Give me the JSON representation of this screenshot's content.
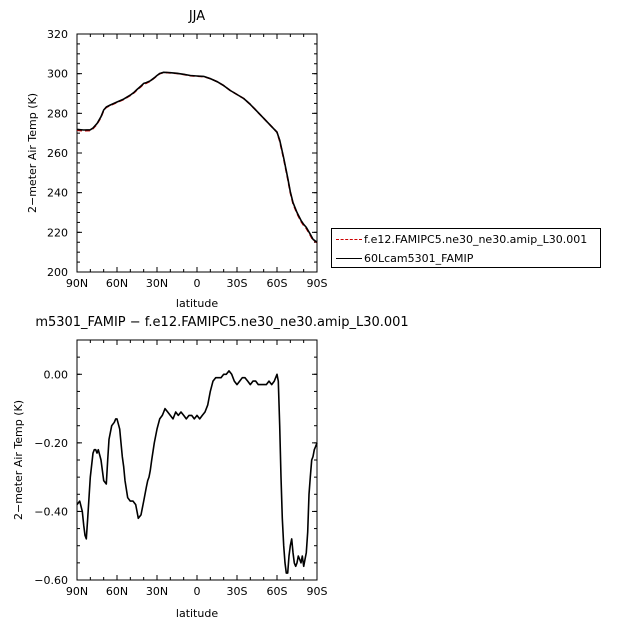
{
  "chart_data": [
    {
      "type": "line",
      "title": "JJA",
      "xlabel": "latitude",
      "ylabel": "2−meter Air Temp (K)",
      "xlim": [
        90,
        -90
      ],
      "ylim": [
        200,
        320
      ],
      "xticks": [
        90,
        60,
        30,
        0,
        -30,
        -60,
        -90
      ],
      "xtick_labels": [
        "90N",
        "60N",
        "30N",
        "0",
        "30S",
        "60S",
        "90S"
      ],
      "yticks": [
        200,
        220,
        240,
        260,
        280,
        300,
        320
      ],
      "ytick_labels": [
        "200",
        "220",
        "240",
        "260",
        "280",
        "300",
        "320"
      ],
      "grid": false,
      "legend_placement": "right-outside",
      "series": [
        {
          "name": "f.e12.FAMIPC5.ne30_ne30.amip_L30.001",
          "color": "#cc0000",
          "dash": "dashed",
          "x": [
            90,
            85,
            80,
            78,
            75,
            72,
            70,
            68,
            65,
            60,
            55,
            50,
            47,
            45,
            42,
            40,
            38,
            35,
            32,
            30,
            28,
            25,
            22,
            20,
            15,
            10,
            5,
            0,
            -5,
            -10,
            -15,
            -20,
            -25,
            -30,
            -35,
            -40,
            -45,
            -50,
            -55,
            -60,
            -62,
            -65,
            -68,
            -70,
            -72,
            -75,
            -78,
            -80,
            -82,
            -85,
            -87,
            -90
          ],
          "y": [
            271.5,
            271.2,
            271.3,
            272.3,
            274.5,
            278,
            281.5,
            283,
            284,
            285.5,
            287,
            289,
            290.5,
            291.8,
            293.5,
            294.8,
            295.2,
            296.2,
            297.8,
            299,
            300,
            300.6,
            300.5,
            300.4,
            300.1,
            299.6,
            299,
            298.7,
            298.5,
            297.5,
            296,
            294,
            291.5,
            289.5,
            287.5,
            284.5,
            281,
            277.5,
            274,
            270.5,
            266,
            257,
            247,
            240,
            234.5,
            229.5,
            225.5,
            223.5,
            222,
            218.5,
            216,
            214.8
          ]
        },
        {
          "name": "60Lcam5301_FAMIP",
          "color": "#000000",
          "dash": "solid",
          "x": [
            90,
            85,
            80,
            78,
            75,
            72,
            70,
            68,
            65,
            60,
            55,
            50,
            47,
            45,
            42,
            40,
            38,
            35,
            32,
            30,
            28,
            25,
            22,
            20,
            15,
            10,
            5,
            0,
            -5,
            -10,
            -15,
            -20,
            -25,
            -30,
            -35,
            -40,
            -45,
            -50,
            -55,
            -60,
            -62,
            -65,
            -68,
            -70,
            -72,
            -75,
            -78,
            -80,
            -82,
            -85,
            -87,
            -90
          ],
          "y": [
            271.9,
            271.6,
            271.7,
            272.6,
            274.8,
            278.3,
            281.7,
            283.2,
            284.2,
            285.7,
            287.2,
            289.2,
            290.7,
            292,
            293.8,
            295.1,
            295.5,
            296.4,
            297.9,
            299.1,
            300.1,
            300.7,
            300.6,
            300.5,
            300.2,
            299.7,
            299.1,
            298.8,
            298.6,
            297.5,
            296,
            294,
            291.5,
            289.5,
            287.5,
            284.5,
            281,
            277.5,
            274,
            270.5,
            266.5,
            257.5,
            247.5,
            240.5,
            235,
            230,
            226,
            224,
            222.5,
            219,
            216.5,
            215
          ]
        }
      ]
    },
    {
      "type": "line",
      "title": "m5301_FAMIP − f.e12.FAMIPC5.ne30_ne30.amip_L30.001",
      "xlabel": "latitude",
      "ylabel": "2−meter Air Temp (K)",
      "xlim": [
        90,
        -90
      ],
      "ylim": [
        -0.6,
        0.1
      ],
      "xticks": [
        90,
        60,
        30,
        0,
        -30,
        -60,
        -90
      ],
      "xtick_labels": [
        "90N",
        "60N",
        "30N",
        "0",
        "30S",
        "60S",
        "90S"
      ],
      "yticks": [
        0,
        -0.2,
        -0.4,
        -0.6
      ],
      "ytick_labels": [
        "0.00",
        "−0.20",
        "−0.40",
        "−0.60"
      ],
      "grid": false,
      "series": [
        {
          "color": "#000000",
          "dash": "solid",
          "x": [
            90,
            88,
            86,
            85,
            84,
            83,
            82,
            80,
            78,
            77,
            76,
            75,
            74,
            72,
            70,
            68,
            67,
            66,
            64,
            62,
            61,
            60,
            58,
            57,
            56,
            55,
            54,
            52,
            50,
            48,
            46,
            45,
            44,
            42,
            40,
            38,
            37,
            36,
            35,
            34,
            32,
            30,
            28,
            26,
            25,
            24,
            22,
            20,
            18,
            16,
            14,
            12,
            10,
            8,
            6,
            4,
            2,
            0,
            -2,
            -4,
            -6,
            -8,
            -10,
            -12,
            -14,
            -16,
            -18,
            -20,
            -22,
            -24,
            -26,
            -28,
            -30,
            -32,
            -34,
            -36,
            -38,
            -40,
            -42,
            -44,
            -46,
            -48,
            -50,
            -52,
            -54,
            -56,
            -58,
            -60,
            -61,
            -62,
            -63,
            -64,
            -65,
            -66,
            -67,
            -68,
            -69,
            -70,
            -71,
            -72,
            -73,
            -74,
            -75,
            -76,
            -77,
            -78,
            -79,
            -80,
            -81,
            -82,
            -83,
            -84,
            -85,
            -86,
            -87,
            -88,
            -89,
            -90
          ],
          "y": [
            -0.38,
            -0.37,
            -0.4,
            -0.44,
            -0.47,
            -0.48,
            -0.42,
            -0.3,
            -0.23,
            -0.22,
            -0.22,
            -0.23,
            -0.22,
            -0.25,
            -0.31,
            -0.32,
            -0.25,
            -0.19,
            -0.15,
            -0.14,
            -0.13,
            -0.13,
            -0.16,
            -0.2,
            -0.24,
            -0.27,
            -0.31,
            -0.36,
            -0.37,
            -0.37,
            -0.38,
            -0.4,
            -0.42,
            -0.41,
            -0.37,
            -0.33,
            -0.31,
            -0.3,
            -0.28,
            -0.25,
            -0.2,
            -0.16,
            -0.13,
            -0.12,
            -0.11,
            -0.1,
            -0.11,
            -0.12,
            -0.13,
            -0.11,
            -0.12,
            -0.11,
            -0.12,
            -0.13,
            -0.12,
            -0.12,
            -0.13,
            -0.12,
            -0.13,
            -0.12,
            -0.11,
            -0.09,
            -0.05,
            -0.02,
            -0.01,
            -0.01,
            -0.01,
            0.0,
            0.0,
            0.01,
            0.0,
            -0.02,
            -0.03,
            -0.02,
            -0.01,
            -0.01,
            -0.02,
            -0.03,
            -0.02,
            -0.02,
            -0.03,
            -0.03,
            -0.03,
            -0.03,
            -0.02,
            -0.03,
            -0.02,
            0.0,
            -0.02,
            -0.15,
            -0.3,
            -0.42,
            -0.5,
            -0.55,
            -0.58,
            -0.58,
            -0.53,
            -0.5,
            -0.48,
            -0.52,
            -0.55,
            -0.56,
            -0.55,
            -0.53,
            -0.54,
            -0.55,
            -0.53,
            -0.56,
            -0.54,
            -0.52,
            -0.46,
            -0.35,
            -0.3,
            -0.25,
            -0.24,
            -0.22,
            -0.21,
            -0.2
          ]
        }
      ]
    }
  ]
}
